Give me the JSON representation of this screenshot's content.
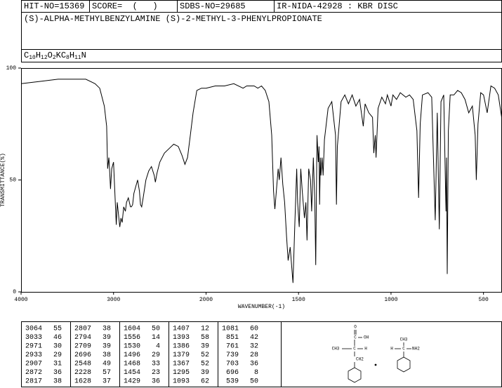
{
  "header": {
    "hit_no": "HIT-NO=15369",
    "score": "SCORE=  (   )",
    "sdbs_no": "SDBS-NO=29685",
    "method": "IR-NIDA-42928 : KBR DISC",
    "name": "(S)-ALPHA-METHYLBENZYLAMINE (S)-2-METHYL-3-PHENYLPROPIONATE",
    "formula": [
      "C",
      "10",
      "H",
      "12",
      "O",
      "2",
      "KC",
      "8",
      "H",
      "11",
      "N"
    ]
  },
  "chart_data": {
    "type": "line",
    "x_label": "WAVENUMBER(-1)",
    "y_label": "TRANSMITTANCE(%)",
    "xlim": [
      4000,
      400
    ],
    "ylim": [
      0,
      100
    ],
    "xticks": [
      4000,
      3000,
      2000,
      1500,
      1000,
      500
    ],
    "yticks": [
      0,
      50,
      100
    ],
    "x_scale": {
      "break": 2000,
      "expansion": 2
    },
    "color": "#000000",
    "x": [
      4000,
      3800,
      3600,
      3400,
      3300,
      3200,
      3150,
      3100,
      3075,
      3064,
      3050,
      3040,
      3033,
      3020,
      3000,
      2971,
      2960,
      2933,
      2920,
      2907,
      2890,
      2872,
      2860,
      2840,
      2817,
      2807,
      2794,
      2780,
      2760,
      2740,
      2720,
      2709,
      2696,
      2680,
      2650,
      2620,
      2590,
      2560,
      2548,
      2530,
      2500,
      2450,
      2400,
      2350,
      2300,
      2260,
      2228,
      2200,
      2170,
      2140,
      2100,
      2050,
      2000,
      1950,
      1900,
      1850,
      1800,
      1780,
      1760,
      1740,
      1720,
      1700,
      1680,
      1660,
      1645,
      1635,
      1628,
      1620,
      1610,
      1604,
      1595,
      1585,
      1575,
      1565,
      1556,
      1545,
      1530,
      1520,
      1510,
      1505,
      1496,
      1488,
      1480,
      1468,
      1460,
      1454,
      1445,
      1435,
      1429,
      1420,
      1412,
      1407,
      1400,
      1393,
      1389,
      1386,
      1382,
      1379,
      1373,
      1367,
      1360,
      1340,
      1320,
      1300,
      1295,
      1290,
      1270,
      1250,
      1230,
      1210,
      1190,
      1170,
      1150,
      1140,
      1120,
      1100,
      1093,
      1085,
      1081,
      1070,
      1050,
      1030,
      1020,
      1000,
      990,
      970,
      950,
      920,
      900,
      880,
      860,
      851,
      842,
      830,
      800,
      780,
      761,
      750,
      739,
      730,
      715,
      703,
      700,
      696,
      690,
      680,
      660,
      640,
      620,
      600,
      580,
      560,
      545,
      539,
      530,
      515,
      500,
      480,
      460,
      440,
      420,
      400
    ],
    "values": [
      93,
      94,
      95,
      95,
      95,
      93,
      91,
      83,
      74,
      55,
      60,
      52,
      46,
      55,
      58,
      30,
      40,
      29,
      33,
      31,
      38,
      36,
      40,
      42,
      38,
      38,
      39,
      44,
      47,
      50,
      45,
      39,
      38,
      42,
      50,
      54,
      56,
      52,
      49,
      53,
      58,
      62,
      64,
      66,
      65,
      61,
      57,
      60,
      70,
      80,
      90,
      91,
      91,
      92,
      92,
      93,
      91,
      92,
      92,
      92,
      91,
      92,
      90,
      85,
      70,
      45,
      37,
      45,
      55,
      50,
      60,
      48,
      40,
      25,
      14,
      20,
      4,
      30,
      55,
      40,
      29,
      55,
      45,
      33,
      40,
      23,
      55,
      50,
      36,
      60,
      40,
      12,
      70,
      58,
      65,
      39,
      60,
      52,
      60,
      52,
      68,
      82,
      85,
      70,
      39,
      65,
      85,
      88,
      84,
      88,
      83,
      86,
      74,
      84,
      80,
      78,
      62,
      70,
      60,
      82,
      87,
      84,
      88,
      83,
      88,
      86,
      89,
      87,
      88,
      86,
      72,
      42,
      75,
      88,
      89,
      87,
      32,
      80,
      28,
      85,
      88,
      36,
      60,
      8,
      72,
      88,
      88,
      90,
      89,
      86,
      80,
      83,
      70,
      50,
      75,
      89,
      88,
      80,
      92,
      91,
      88,
      77
    ]
  },
  "peak_table": [
    [
      3064,
      55
    ],
    [
      3033,
      46
    ],
    [
      2971,
      30
    ],
    [
      2933,
      29
    ],
    [
      2907,
      31
    ],
    [
      2872,
      36
    ],
    [
      2817,
      38
    ],
    [
      2807,
      38
    ],
    [
      2794,
      39
    ],
    [
      2709,
      39
    ],
    [
      2696,
      38
    ],
    [
      2548,
      49
    ],
    [
      2228,
      57
    ],
    [
      1628,
      37
    ],
    [
      1604,
      50
    ],
    [
      1556,
      14
    ],
    [
      1530,
      4
    ],
    [
      1496,
      29
    ],
    [
      1468,
      33
    ],
    [
      1454,
      23
    ],
    [
      1429,
      36
    ],
    [
      1407,
      12
    ],
    [
      1393,
      58
    ],
    [
      1386,
      39
    ],
    [
      1379,
      52
    ],
    [
      1367,
      52
    ],
    [
      1295,
      39
    ],
    [
      1093,
      62
    ],
    [
      1081,
      60
    ],
    [
      851,
      42
    ],
    [
      761,
      32
    ],
    [
      739,
      28
    ],
    [
      703,
      36
    ],
    [
      696,
      8
    ],
    [
      539,
      50
    ]
  ],
  "structure_labels": [
    "O",
    "C",
    "OH",
    "CH3",
    "C",
    "H",
    "CH2",
    "CH3",
    "H",
    "C",
    "NH2"
  ]
}
